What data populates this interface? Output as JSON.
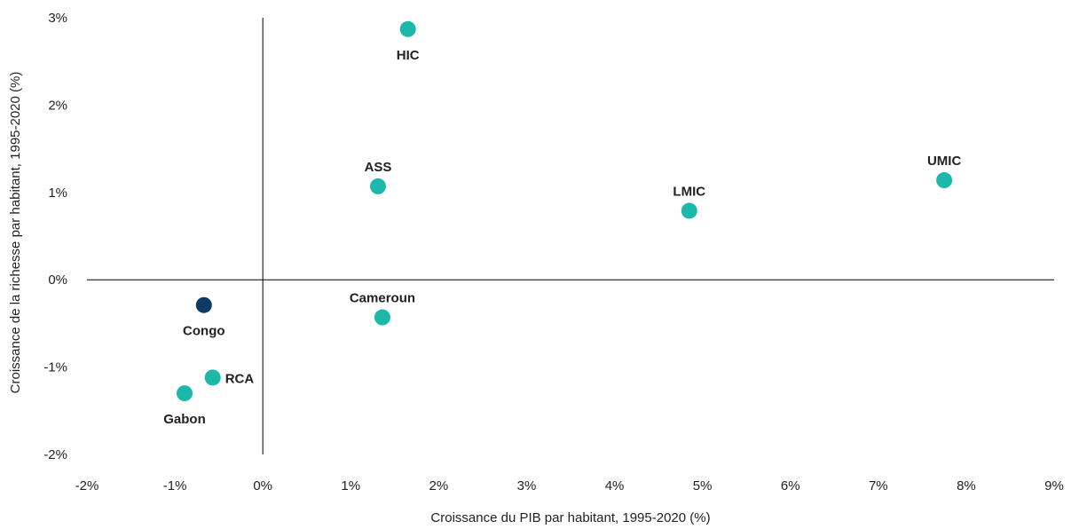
{
  "chart_data": {
    "type": "scatter",
    "xlabel": "Croissance du PIB par habitant, 1995-2020 (%)",
    "ylabel": "Croissance de la richesse par habitant, 1995-2020 (%)",
    "xlim": [
      -2,
      9
    ],
    "ylim": [
      -2,
      3
    ],
    "xticks": [
      -2,
      -1,
      0,
      1,
      2,
      3,
      4,
      5,
      6,
      7,
      8,
      9
    ],
    "yticks": [
      -2,
      -1,
      0,
      1,
      2,
      3
    ],
    "xtick_labels": [
      "-2%",
      "-1%",
      "0%",
      "1%",
      "2%",
      "3%",
      "4%",
      "5%",
      "6%",
      "7%",
      "8%",
      "9%"
    ],
    "ytick_labels": [
      "-2%",
      "-1%",
      "0%",
      "1%",
      "2%",
      "3%"
    ],
    "colors": {
      "default": "#1cb8aa",
      "highlight": "#0b3b63"
    },
    "points": [
      {
        "label": "HIC",
        "x": 1.65,
        "y": 2.87,
        "label_position": "below",
        "highlight": false
      },
      {
        "label": "ASS",
        "x": 1.31,
        "y": 1.07,
        "label_position": "above",
        "highlight": false
      },
      {
        "label": "LMIC",
        "x": 4.85,
        "y": 0.79,
        "label_position": "above",
        "highlight": false
      },
      {
        "label": "UMIC",
        "x": 7.75,
        "y": 1.14,
        "label_position": "above",
        "highlight": false
      },
      {
        "label": "Cameroun",
        "x": 1.36,
        "y": -0.43,
        "label_position": "above",
        "highlight": false
      },
      {
        "label": "Congo",
        "x": -0.67,
        "y": -0.29,
        "label_position": "below",
        "highlight": true
      },
      {
        "label": "RCA",
        "x": -0.57,
        "y": -1.12,
        "label_position": "right",
        "highlight": false
      },
      {
        "label": "Gabon",
        "x": -0.89,
        "y": -1.3,
        "label_position": "below",
        "highlight": false
      }
    ]
  }
}
